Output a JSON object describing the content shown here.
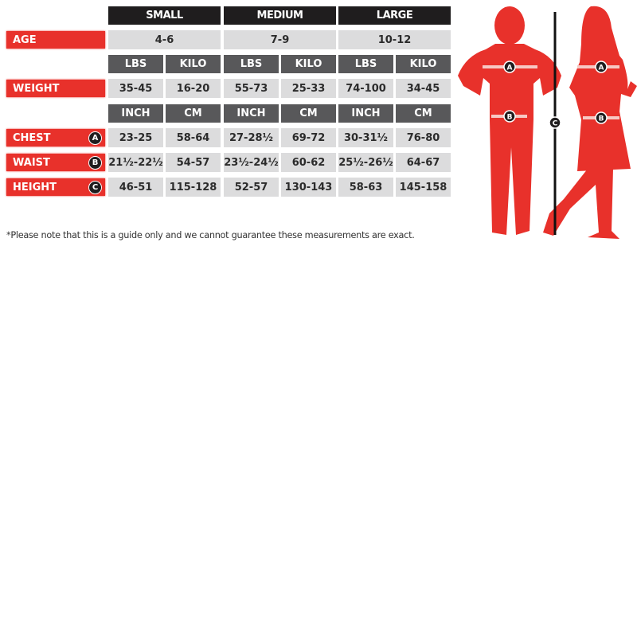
{
  "sizes": [
    "SMALL",
    "MEDIUM",
    "LARGE"
  ],
  "rows": {
    "age": {
      "label": "AGE",
      "values": [
        "4-6",
        "7-9",
        "10-12"
      ]
    },
    "weight": {
      "label": "WEIGHT",
      "units": [
        "LBS",
        "KILO"
      ],
      "values": [
        "35-45",
        "16-20",
        "55-73",
        "25-33",
        "74-100",
        "34-45"
      ]
    },
    "chest": {
      "label": "CHEST",
      "badge": "A",
      "values": [
        "23-25",
        "58-64",
        "27-28½",
        "69-72",
        "30-31½",
        "76-80"
      ]
    },
    "waist": {
      "label": "WAIST",
      "badge": "B",
      "values": [
        "21½-22½",
        "54-57",
        "23½-24½",
        "60-62",
        "25½-26½",
        "64-67"
      ]
    },
    "height": {
      "label": "HEIGHT",
      "badge": "C",
      "values": [
        "46-51",
        "115-128",
        "52-57",
        "130-143",
        "58-63",
        "145-158"
      ]
    },
    "length_units": [
      "INCH",
      "CM"
    ]
  },
  "note": "*Please note that this is a guide only and we cannot guarantee these measurements are exact.",
  "figure": {
    "markers": [
      "A",
      "B",
      "C"
    ]
  },
  "colors": {
    "accent": "#e8312b",
    "header": "#1f1d1e",
    "subheader": "#58585a",
    "cell": "#dcdcdd"
  }
}
